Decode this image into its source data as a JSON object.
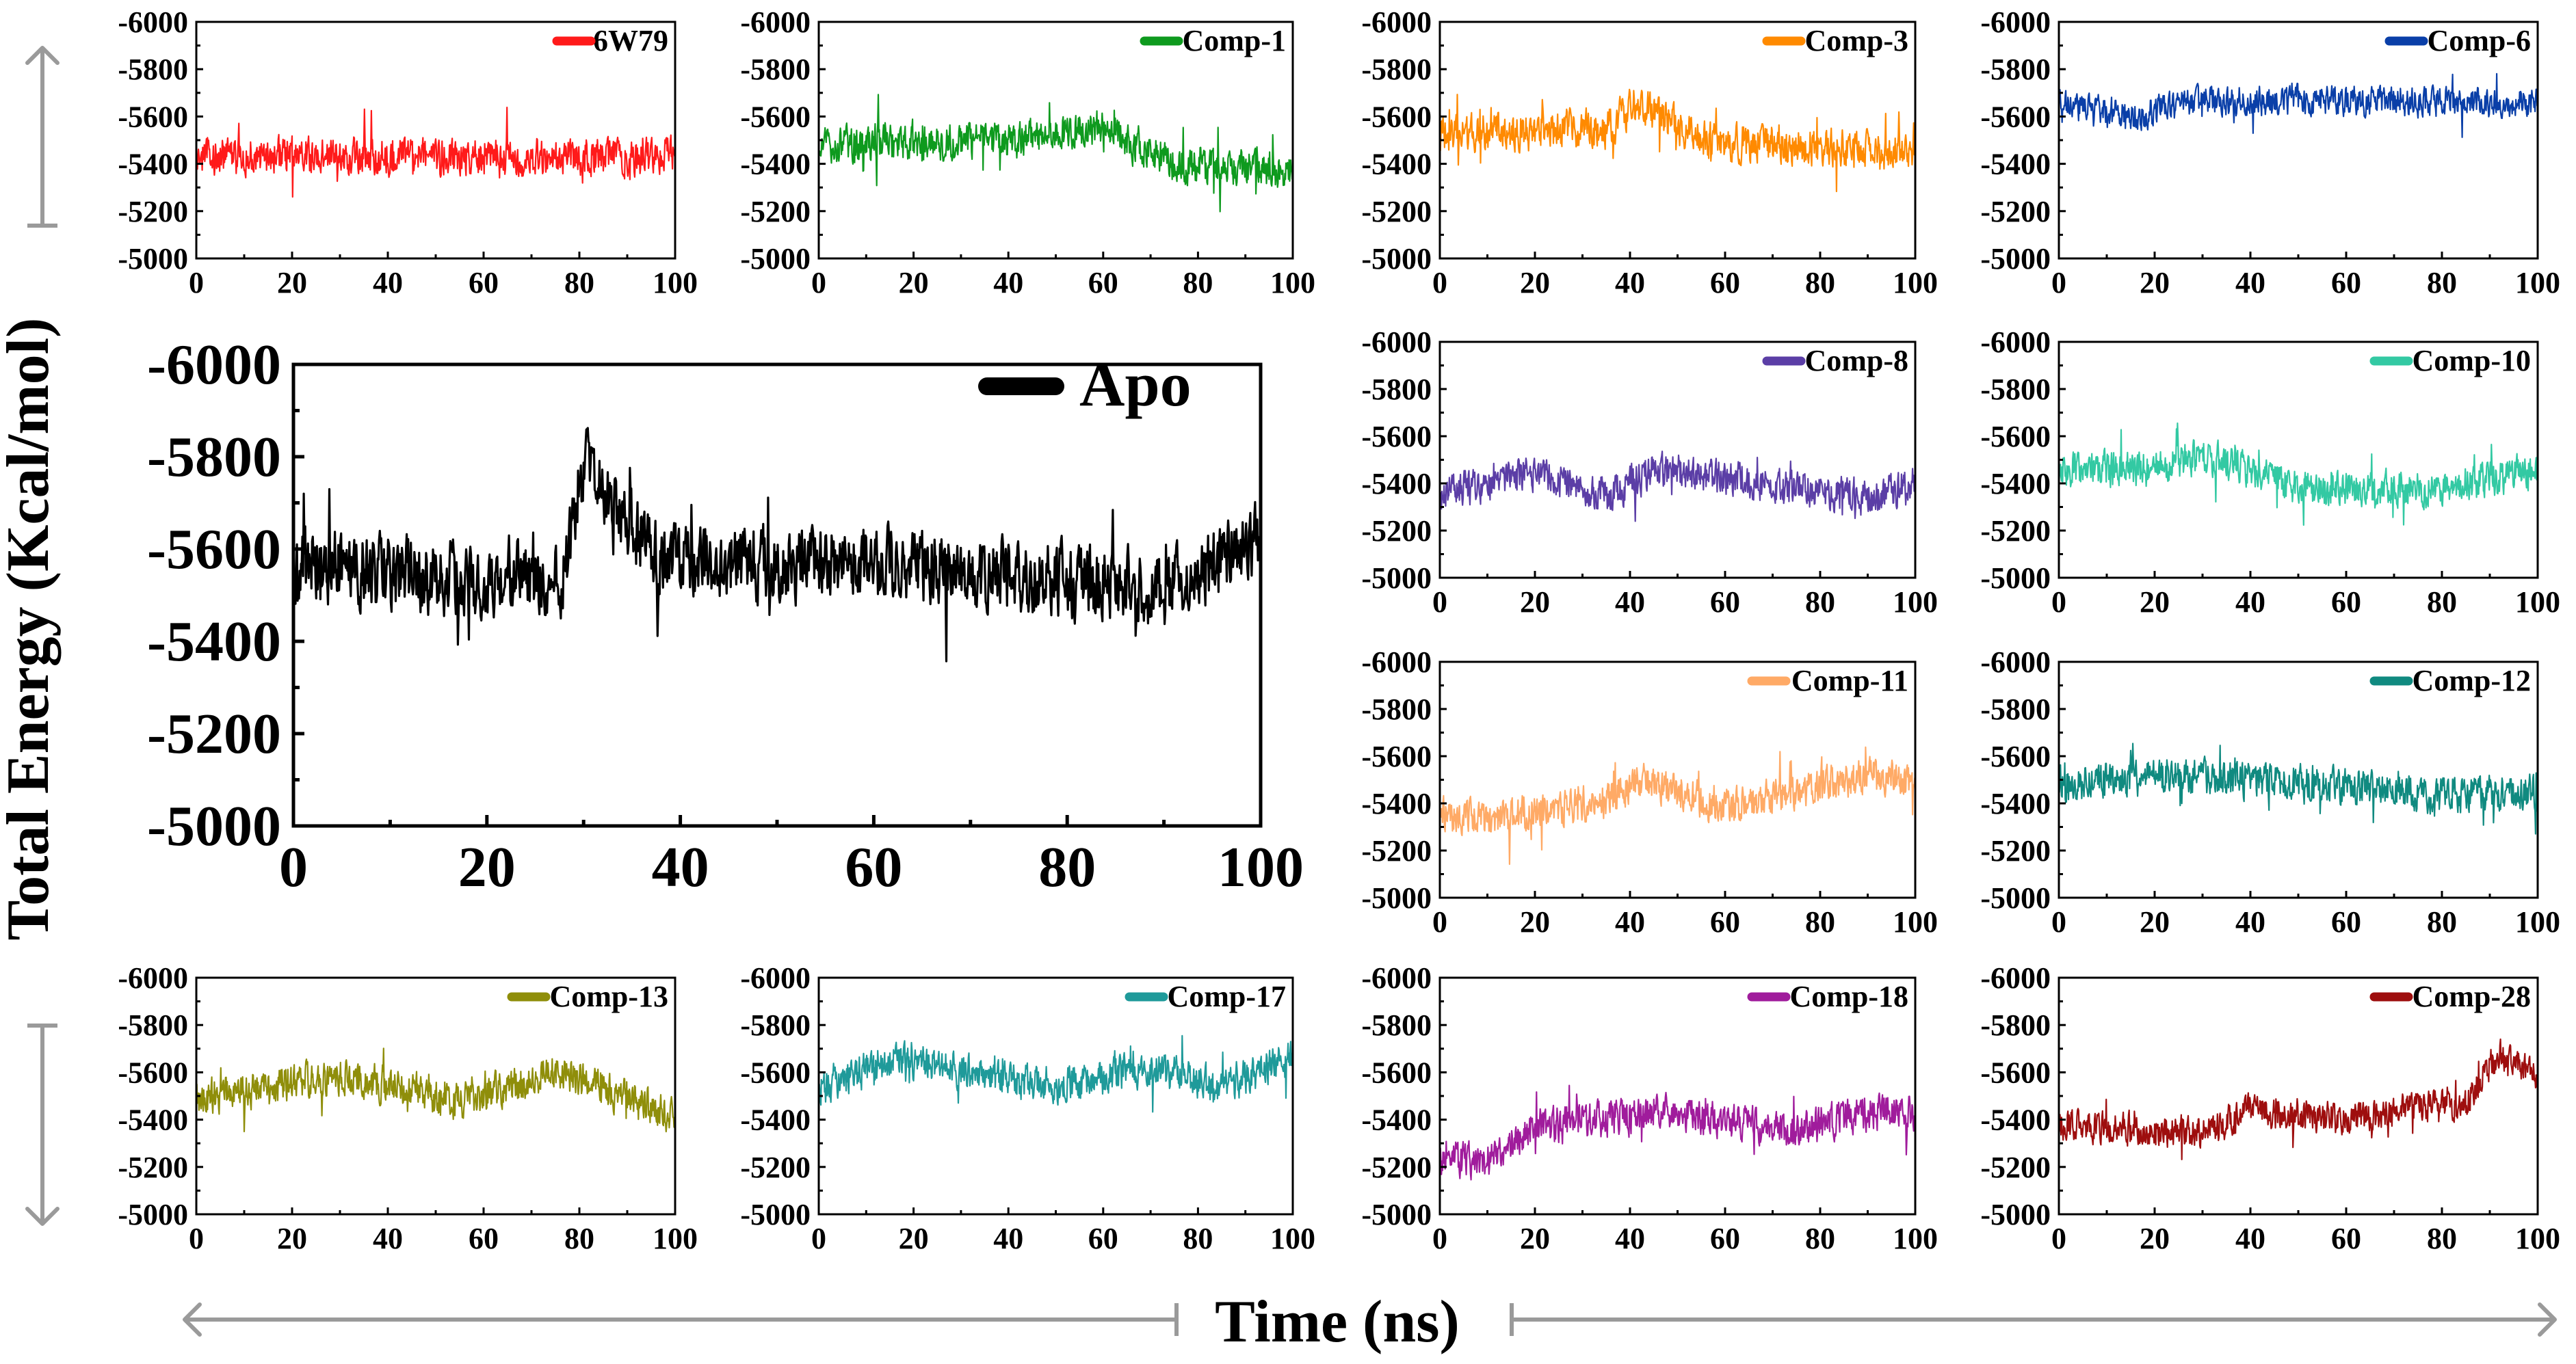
{
  "figure": {
    "ylabel": "Total Energy (Kcal/mol)",
    "xlabel": "Time (ns)",
    "colors": {
      "guide_arrow": "#9a9a9a"
    }
  },
  "chart_data": [
    {
      "type": "line",
      "series": [
        {
          "name": "6W79",
          "color": "#ff1a1a",
          "mean": -5430,
          "amp": 90,
          "drift": [
            [
              0,
              0
            ],
            [
              1,
              0
            ]
          ]
        }
      ],
      "x_range": [
        0,
        100
      ],
      "ylim": [
        -5000,
        -6000
      ],
      "x_ticks": [
        "0",
        "20",
        "40",
        "60",
        "80",
        "100"
      ],
      "y_ticks": [
        "-6000",
        "-5800",
        "-5600",
        "-5400",
        "-5200",
        "-5000"
      ],
      "xlabel": "",
      "ylabel": ""
    },
    {
      "type": "line",
      "series": [
        {
          "name": "Comp-1",
          "color": "#0e9a1e",
          "mean": -5500,
          "amp": 85,
          "drift": [
            [
              0,
              20
            ],
            [
              0.4,
              0
            ],
            [
              0.6,
              -60
            ],
            [
              0.75,
              100
            ],
            [
              1,
              140
            ]
          ]
        }
      ],
      "x_range": [
        0,
        100
      ],
      "ylim": [
        -5000,
        -6000
      ],
      "x_ticks": [
        "0",
        "20",
        "40",
        "60",
        "80",
        "100"
      ],
      "y_ticks": [
        "-6000",
        "-5800",
        "-5600",
        "-5400",
        "-5200",
        "-5000"
      ],
      "xlabel": "",
      "ylabel": ""
    },
    {
      "type": "line",
      "series": [
        {
          "name": "Comp-3",
          "color": "#ff8a00",
          "mean": -5530,
          "amp": 90,
          "drift": [
            [
              0,
              0
            ],
            [
              0.35,
              -20
            ],
            [
              0.42,
              -130
            ],
            [
              0.55,
              30
            ],
            [
              1,
              80
            ]
          ]
        }
      ],
      "x_range": [
        0,
        100
      ],
      "ylim": [
        -5000,
        -6000
      ],
      "x_ticks": [
        "0",
        "20",
        "40",
        "60",
        "80",
        "100"
      ],
      "y_ticks": [
        "-6000",
        "-5800",
        "-5600",
        "-5400",
        "-5200",
        "-5000"
      ],
      "xlabel": "",
      "ylabel": ""
    },
    {
      "type": "line",
      "series": [
        {
          "name": "Comp-6",
          "color": "#0a3fa8",
          "mean": -5660,
          "amp": 70,
          "drift": [
            [
              0,
              0
            ],
            [
              0.15,
              60
            ],
            [
              0.3,
              -10
            ],
            [
              1,
              0
            ]
          ]
        }
      ],
      "x_range": [
        0,
        100
      ],
      "ylim": [
        -5000,
        -6000
      ],
      "x_ticks": [
        "0",
        "20",
        "40",
        "60",
        "80",
        "100"
      ],
      "y_ticks": [
        "-6000",
        "-5800",
        "-5600",
        "-5400",
        "-5200",
        "-5000"
      ],
      "xlabel": "",
      "ylabel": ""
    },
    {
      "type": "line",
      "series": [
        {
          "name": "Comp-8",
          "color": "#5b3ea6",
          "mean": -5400,
          "amp": 85,
          "drift": [
            [
              0,
              40
            ],
            [
              0.2,
              -40
            ],
            [
              0.35,
              60
            ],
            [
              0.45,
              -60
            ],
            [
              0.9,
              60
            ],
            [
              1,
              0
            ]
          ]
        }
      ],
      "x_range": [
        0,
        100
      ],
      "ylim": [
        -5000,
        -6000
      ],
      "x_ticks": [
        "0",
        "20",
        "40",
        "60",
        "80",
        "100"
      ],
      "y_ticks": [
        "-6000",
        "-5800",
        "-5600",
        "-5400",
        "-5200",
        "-5000"
      ],
      "xlabel": "",
      "ylabel": ""
    },
    {
      "type": "line",
      "series": [
        {
          "name": "Comp-10",
          "color": "#33c9a3",
          "mean": -5460,
          "amp": 85,
          "drift": [
            [
              0,
              0
            ],
            [
              0.2,
              0
            ],
            [
              0.3,
              -60
            ],
            [
              0.5,
              80
            ],
            [
              0.8,
              80
            ],
            [
              1,
              0
            ]
          ]
        }
      ],
      "x_range": [
        0,
        100
      ],
      "ylim": [
        -5000,
        -6000
      ],
      "x_ticks": [
        "0",
        "20",
        "40",
        "60",
        "80",
        "100"
      ],
      "y_ticks": [
        "-6000",
        "-5800",
        "-5600",
        "-5400",
        "-5200",
        "-5000"
      ],
      "xlabel": "",
      "ylabel": ""
    },
    {
      "type": "line",
      "series": [
        {
          "name": "Comp-11",
          "color": "#ffaa66",
          "mean": -5420,
          "amp": 85,
          "drift": [
            [
              0,
              60
            ],
            [
              0.1,
              100
            ],
            [
              0.35,
              0
            ],
            [
              0.42,
              -80
            ],
            [
              0.6,
              40
            ],
            [
              0.9,
              -100
            ],
            [
              1,
              -60
            ]
          ]
        }
      ],
      "x_range": [
        0,
        100
      ],
      "ylim": [
        -5000,
        -6000
      ],
      "x_ticks": [
        "0",
        "20",
        "40",
        "60",
        "80",
        "100"
      ],
      "y_ticks": [
        "-6000",
        "-5800",
        "-5600",
        "-5400",
        "-5200",
        "-5000"
      ],
      "xlabel": "",
      "ylabel": ""
    },
    {
      "type": "line",
      "series": [
        {
          "name": "Comp-12",
          "color": "#108a80",
          "mean": -5490,
          "amp": 85,
          "drift": [
            [
              0,
              0
            ],
            [
              0.3,
              -20
            ],
            [
              0.6,
              20
            ],
            [
              0.8,
              60
            ],
            [
              1,
              40
            ]
          ]
        }
      ],
      "x_range": [
        0,
        100
      ],
      "ylim": [
        -5000,
        -6000
      ],
      "x_ticks": [
        "0",
        "20",
        "40",
        "60",
        "80",
        "100"
      ],
      "y_ticks": [
        "-6000",
        "-5800",
        "-5600",
        "-5400",
        "-5200",
        "-5000"
      ],
      "xlabel": "",
      "ylabel": ""
    },
    {
      "type": "line",
      "series": [
        {
          "name": "Comp-13",
          "color": "#8f8e0a",
          "mean": -5530,
          "amp": 85,
          "drift": [
            [
              0,
              40
            ],
            [
              0.3,
              -60
            ],
            [
              0.55,
              60
            ],
            [
              0.75,
              -80
            ],
            [
              1,
              120
            ]
          ]
        }
      ],
      "x_range": [
        0,
        100
      ],
      "ylim": [
        -5000,
        -6000
      ],
      "x_ticks": [
        "0",
        "20",
        "40",
        "60",
        "80",
        "100"
      ],
      "y_ticks": [
        "-6000",
        "-5800",
        "-5600",
        "-5400",
        "-5200",
        "-5000"
      ],
      "xlabel": "",
      "ylabel": ""
    },
    {
      "type": "line",
      "series": [
        {
          "name": "Comp-17",
          "color": "#1f9a9a",
          "mean": -5600,
          "amp": 85,
          "drift": [
            [
              0,
              80
            ],
            [
              0.15,
              -60
            ],
            [
              0.5,
              60
            ],
            [
              0.7,
              -20
            ],
            [
              0.85,
              60
            ],
            [
              1,
              -60
            ]
          ]
        }
      ],
      "x_range": [
        0,
        100
      ],
      "ylim": [
        -5000,
        -6000
      ],
      "x_ticks": [
        "0",
        "20",
        "40",
        "60",
        "80",
        "100"
      ],
      "y_ticks": [
        "-6000",
        "-5800",
        "-5600",
        "-5400",
        "-5200",
        "-5000"
      ],
      "xlabel": "",
      "ylabel": ""
    },
    {
      "type": "line",
      "series": [
        {
          "name": "Comp-18",
          "color": "#a01c9c",
          "mean": -5390,
          "amp": 85,
          "drift": [
            [
              0,
              160
            ],
            [
              0.1,
              160
            ],
            [
              0.2,
              20
            ],
            [
              0.5,
              -40
            ],
            [
              0.75,
              40
            ],
            [
              0.9,
              -40
            ],
            [
              1,
              -40
            ]
          ]
        }
      ],
      "x_range": [
        0,
        100
      ],
      "ylim": [
        -5000,
        -6000
      ],
      "x_ticks": [
        "0",
        "20",
        "40",
        "60",
        "80",
        "100"
      ],
      "y_ticks": [
        "-6000",
        "-5800",
        "-5600",
        "-5400",
        "-5200",
        "-5000"
      ],
      "xlabel": "",
      "ylabel": ""
    },
    {
      "type": "line",
      "series": [
        {
          "name": "Comp-28",
          "color": "#9e0e0e",
          "mean": -5460,
          "amp": 75,
          "drift": [
            [
              0,
              80
            ],
            [
              0.3,
              120
            ],
            [
              0.4,
              20
            ],
            [
              0.6,
              60
            ],
            [
              0.85,
              -20
            ],
            [
              0.92,
              -220
            ],
            [
              1,
              -120
            ]
          ]
        }
      ],
      "x_range": [
        0,
        100
      ],
      "ylim": [
        -5000,
        -6000
      ],
      "x_ticks": [
        "0",
        "20",
        "40",
        "60",
        "80",
        "100"
      ],
      "y_ticks": [
        "-6000",
        "-5800",
        "-5600",
        "-5400",
        "-5200",
        "-5000"
      ],
      "xlabel": "",
      "ylabel": ""
    },
    {
      "type": "line",
      "series": [
        {
          "name": "Apo",
          "color": "#000000",
          "mean": -5570,
          "amp": 90,
          "drift": [
            [
              0,
              0
            ],
            [
              0.2,
              40
            ],
            [
              0.28,
              30
            ],
            [
              0.3,
              -220
            ],
            [
              0.38,
              0
            ],
            [
              0.6,
              0
            ],
            [
              0.9,
              60
            ],
            [
              1,
              -60
            ]
          ]
        }
      ],
      "x_range": [
        0,
        100
      ],
      "ylim": [
        -5000,
        -6000
      ],
      "x_ticks": [
        "0",
        "20",
        "40",
        "60",
        "80",
        "100"
      ],
      "y_ticks": [
        "-6000",
        "-5800",
        "-5600",
        "-5400",
        "-5200",
        "-5000"
      ],
      "xlabel": "",
      "ylabel": ""
    }
  ]
}
